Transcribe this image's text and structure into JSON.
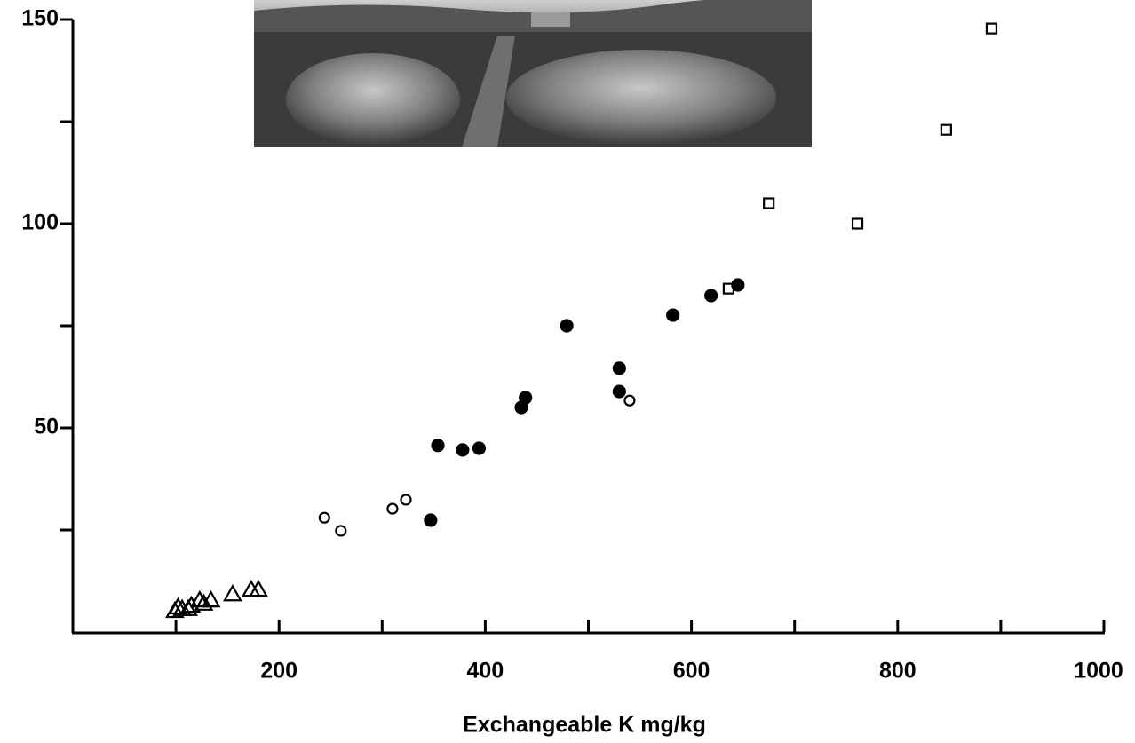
{
  "chart_data": {
    "type": "scatter",
    "xlabel": "Exchangeable K    mg/kg",
    "xlim": [
      0,
      1000
    ],
    "ylim": [
      0,
      150
    ],
    "xticks": [
      200,
      400,
      600,
      800,
      1000
    ],
    "xminor_ticks": [
      100,
      300,
      500,
      700,
      900
    ],
    "yticks": [
      50,
      100,
      150
    ],
    "yminor_ticks": [
      25,
      75,
      125
    ],
    "grid": false,
    "series": [
      {
        "marker": "triangle",
        "filled": false,
        "color": "#000000",
        "x": [
          99,
          102,
          106,
          112,
          115,
          123,
          127,
          134,
          155,
          173,
          180
        ],
        "y": [
          5.2,
          6.1,
          5.7,
          5.7,
          6.5,
          7.8,
          7.0,
          7.8,
          9.3,
          10.4,
          10.4
        ]
      },
      {
        "marker": "circle",
        "filled": false,
        "color": "#000000",
        "x": [
          244,
          260,
          310,
          323,
          540
        ],
        "y": [
          28,
          24.8,
          30.2,
          32.4,
          56.7
        ]
      },
      {
        "marker": "circle",
        "filled": true,
        "color": "#000000",
        "x": [
          347,
          354,
          378,
          394,
          435,
          439,
          479,
          530,
          530,
          582,
          619,
          645
        ],
        "y": [
          27.4,
          45.7,
          44.6,
          45,
          55,
          57.4,
          75,
          64.6,
          58.9,
          77.6,
          82.4,
          85
        ]
      },
      {
        "marker": "square",
        "filled": false,
        "color": "#000000",
        "x": [
          636,
          675,
          761,
          847,
          891
        ],
        "y": [
          84.1,
          105,
          100,
          123,
          147.8
        ]
      }
    ]
  }
}
